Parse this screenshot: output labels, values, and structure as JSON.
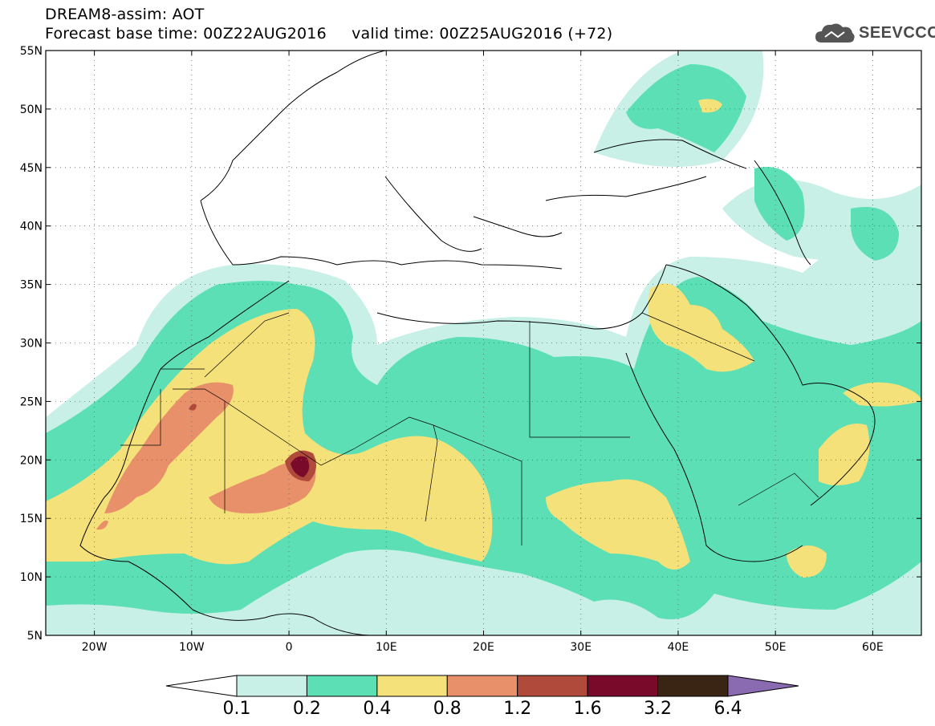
{
  "header": {
    "title_line1": "DREAM8-assim: AOT",
    "title_line2": "Forecast base time: 00Z22AUG2016     valid time: 00Z25AUG2016 (+72)"
  },
  "logo": {
    "text": "SEEVCCC",
    "icon": "cloud-icon"
  },
  "map": {
    "projection": "lat-lon",
    "lon_range": [
      -25,
      65
    ],
    "lat_range": [
      5,
      55
    ],
    "lat_ticks": [
      {
        "value": 55,
        "label": "55N"
      },
      {
        "value": 50,
        "label": "50N"
      },
      {
        "value": 45,
        "label": "45N"
      },
      {
        "value": 40,
        "label": "40N"
      },
      {
        "value": 35,
        "label": "35N"
      },
      {
        "value": 30,
        "label": "30N"
      },
      {
        "value": 25,
        "label": "25N"
      },
      {
        "value": 20,
        "label": "20N"
      },
      {
        "value": 15,
        "label": "15N"
      },
      {
        "value": 10,
        "label": "10N"
      },
      {
        "value": 5,
        "label": "5N"
      }
    ],
    "lon_ticks": [
      {
        "value": -20,
        "label": "20W"
      },
      {
        "value": -10,
        "label": "10W"
      },
      {
        "value": 0,
        "label": "0"
      },
      {
        "value": 10,
        "label": "10E"
      },
      {
        "value": 20,
        "label": "20E"
      },
      {
        "value": 30,
        "label": "30E"
      },
      {
        "value": 40,
        "label": "40E"
      },
      {
        "value": 50,
        "label": "50E"
      },
      {
        "value": 60,
        "label": "60E"
      }
    ],
    "grid": true
  },
  "colorbar": {
    "labels": [
      "0.1",
      "0.2",
      "0.4",
      "0.8",
      "1.2",
      "1.6",
      "3.2",
      "6.4"
    ],
    "colors": [
      "#ffffff",
      "#c8f0e6",
      "#5ddfb5",
      "#f5e17a",
      "#e8906a",
      "#b04a3a",
      "#7a0a2a",
      "#3a2414",
      "#8a6ab0"
    ]
  }
}
